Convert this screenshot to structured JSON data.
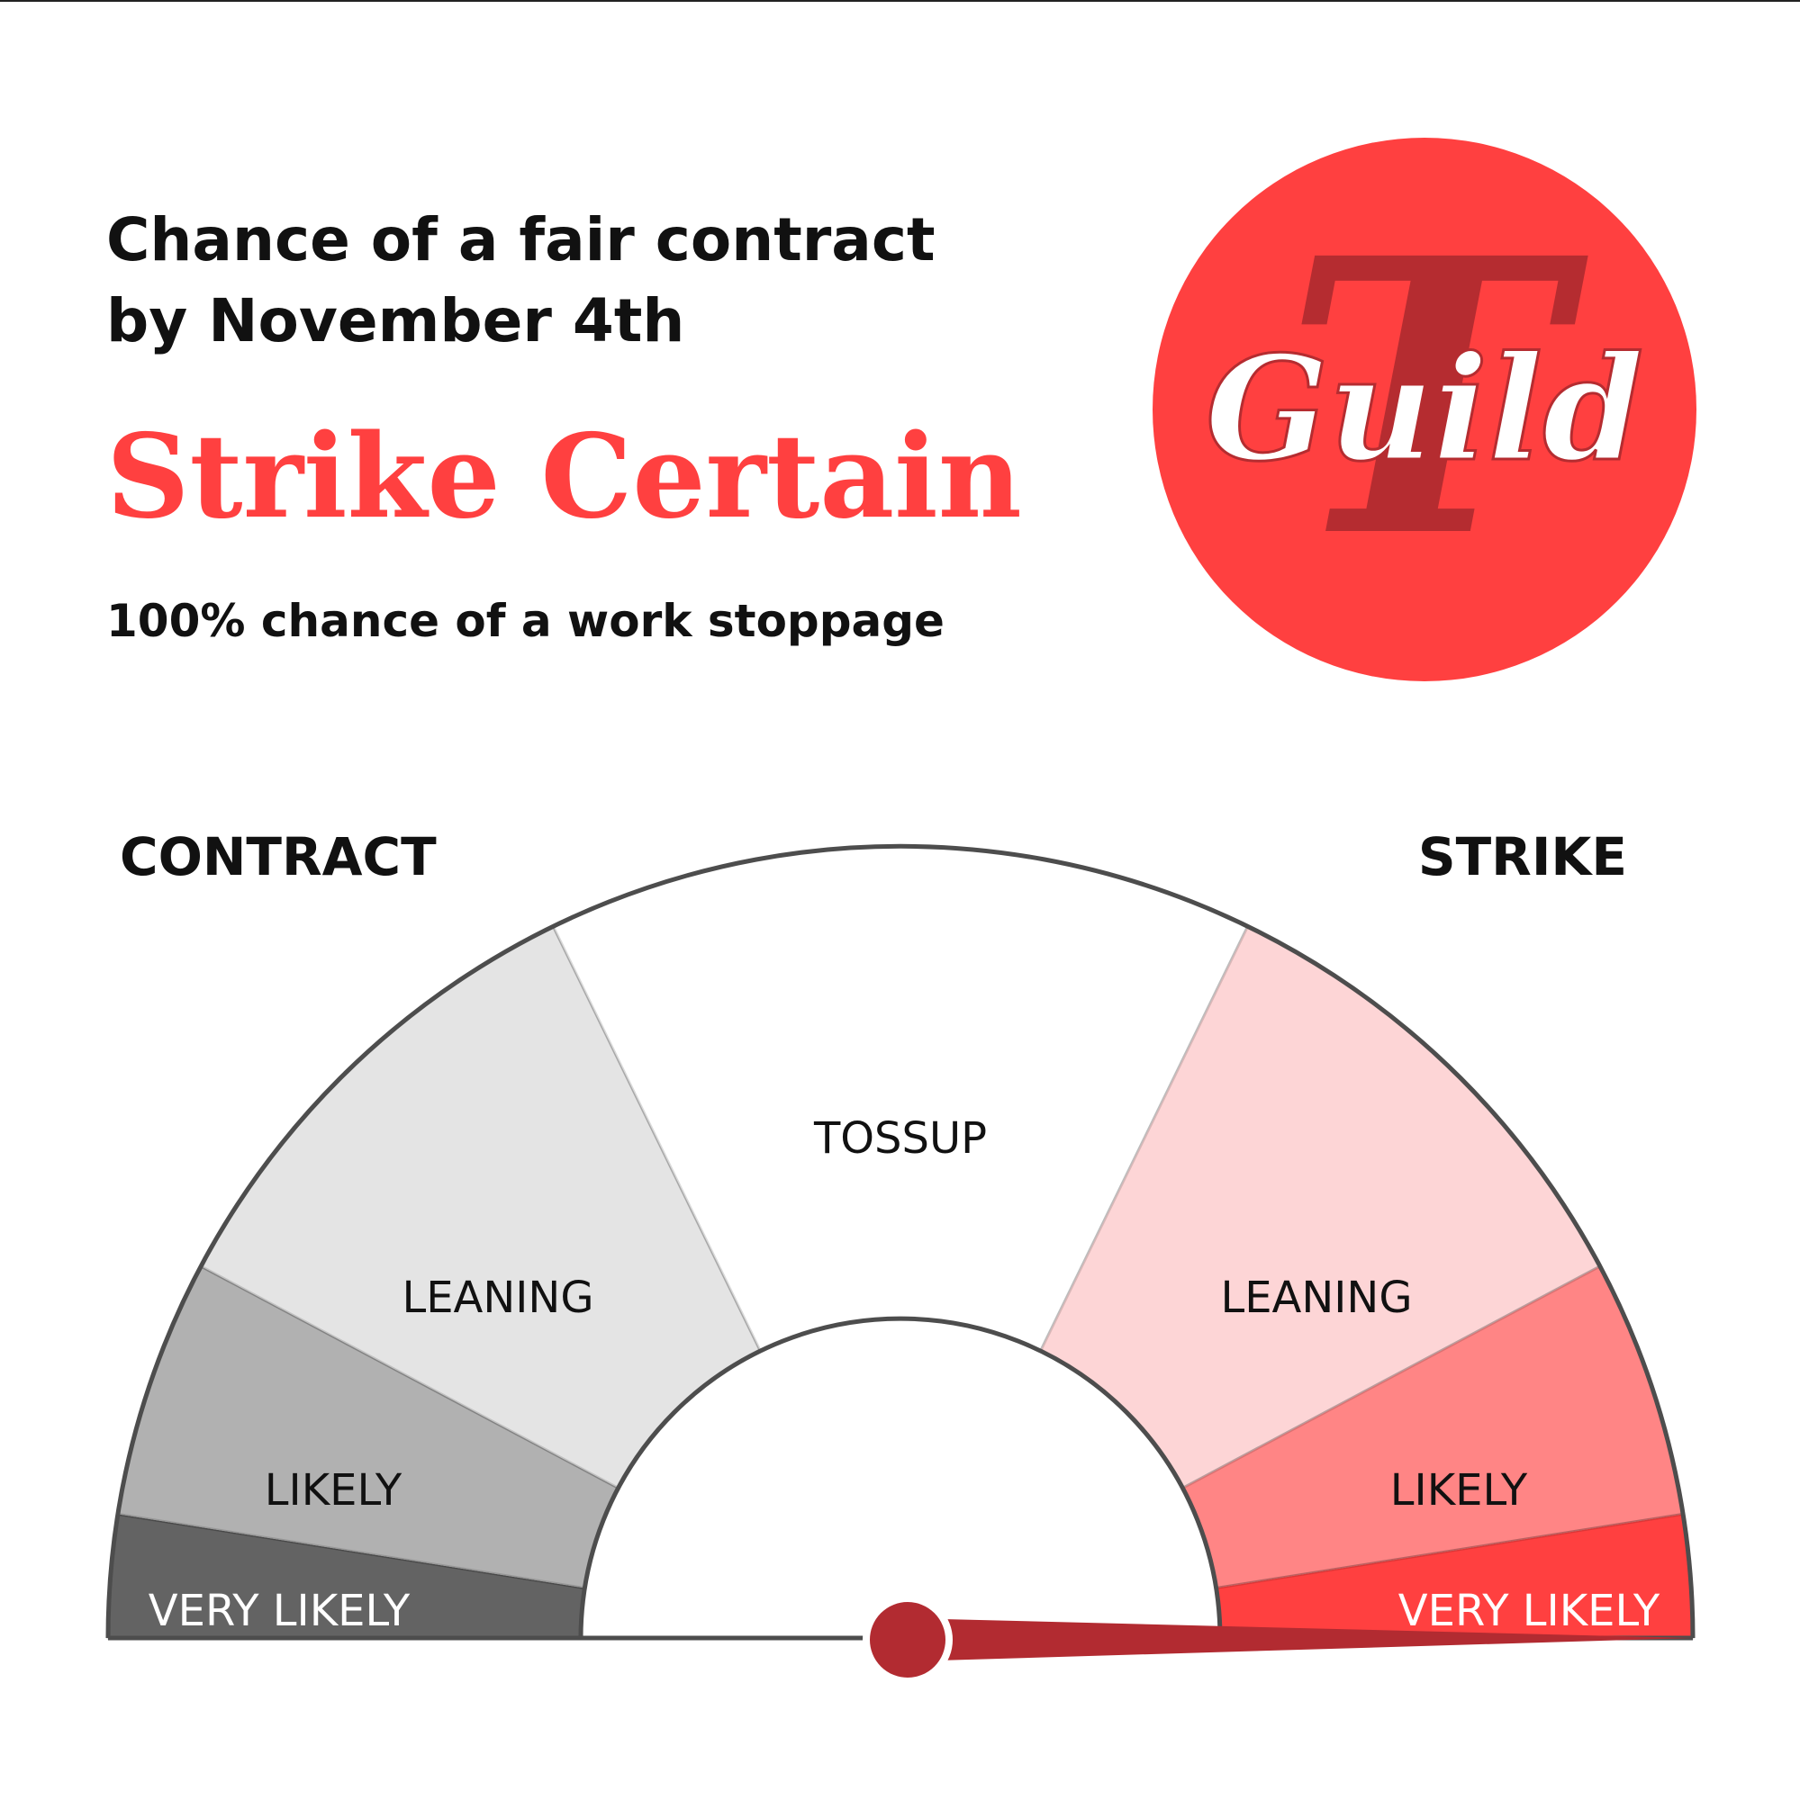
{
  "header": {
    "title_line1": "Chance of a fair contract",
    "title_line2": "by November 4th",
    "verdict": "Strike Certain",
    "subtitle": "100% chance of a work stoppage"
  },
  "logo": {
    "text": "Guild",
    "initial": "T"
  },
  "colors": {
    "accent": "#ff4040",
    "needle": "#b22b31",
    "logo_shadow": "#b52c30",
    "outline": "#4d4d4d"
  },
  "chart_data": {
    "type": "gauge",
    "value_percent_strike": 100,
    "ends": {
      "left": "CONTRACT",
      "right": "STRIKE"
    },
    "bands": [
      {
        "label": "VERY LIKELY",
        "side": "contract",
        "start_deg": 0,
        "end_deg": 9,
        "color": "#636363",
        "text_color": "#ffffff"
      },
      {
        "label": "LIKELY",
        "side": "contract",
        "start_deg": 9,
        "end_deg": 28,
        "color": "#b1b1b1",
        "text_color": "#111111"
      },
      {
        "label": "LEANING",
        "side": "contract",
        "start_deg": 28,
        "end_deg": 64,
        "color": "#e4e4e4",
        "text_color": "#111111"
      },
      {
        "label": "TOSSUP",
        "side": "neutral",
        "start_deg": 64,
        "end_deg": 116,
        "color": "#ffffff",
        "text_color": "#111111"
      },
      {
        "label": "LEANING",
        "side": "strike",
        "start_deg": 116,
        "end_deg": 152,
        "color": "#fdd5d6",
        "text_color": "#111111"
      },
      {
        "label": "LIKELY",
        "side": "strike",
        "start_deg": 152,
        "end_deg": 171,
        "color": "#ff8585",
        "text_color": "#111111"
      },
      {
        "label": "VERY LIKELY",
        "side": "strike",
        "start_deg": 171,
        "end_deg": 180,
        "color": "#ff4040",
        "text_color": "#ffffff"
      }
    ]
  }
}
